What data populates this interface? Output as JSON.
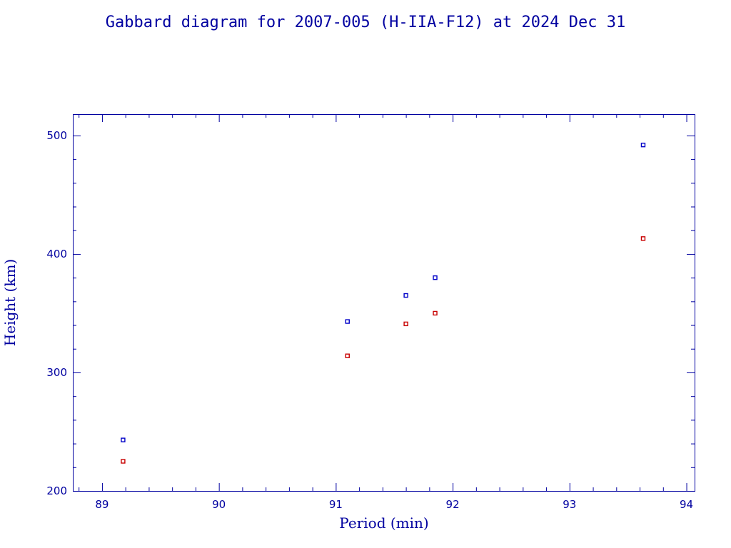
{
  "chart_data": {
    "type": "scatter",
    "title": "Gabbard diagram for 2007-005 (H-IIA-F12) at 2024 Dec 31",
    "xlabel": "Period (min)",
    "ylabel": "Height (km)",
    "xlim": [
      88.75,
      94.07
    ],
    "ylim": [
      200,
      518
    ],
    "x_major_ticks": [
      89,
      90,
      91,
      92,
      93,
      94
    ],
    "x_minor_step": 0.2,
    "y_major_ticks": [
      200,
      300,
      400,
      500
    ],
    "y_minor_step": 20,
    "grid": false,
    "legend": false,
    "series": [
      {
        "color": "#0000c8",
        "points": [
          {
            "x": 89.18,
            "y": 243
          },
          {
            "x": 91.1,
            "y": 343
          },
          {
            "x": 91.6,
            "y": 365
          },
          {
            "x": 91.85,
            "y": 380
          },
          {
            "x": 93.63,
            "y": 492
          }
        ]
      },
      {
        "color": "#c80000",
        "points": [
          {
            "x": 89.18,
            "y": 225
          },
          {
            "x": 91.1,
            "y": 314
          },
          {
            "x": 91.6,
            "y": 341
          },
          {
            "x": 91.85,
            "y": 350
          },
          {
            "x": 93.63,
            "y": 413
          }
        ]
      }
    ]
  }
}
